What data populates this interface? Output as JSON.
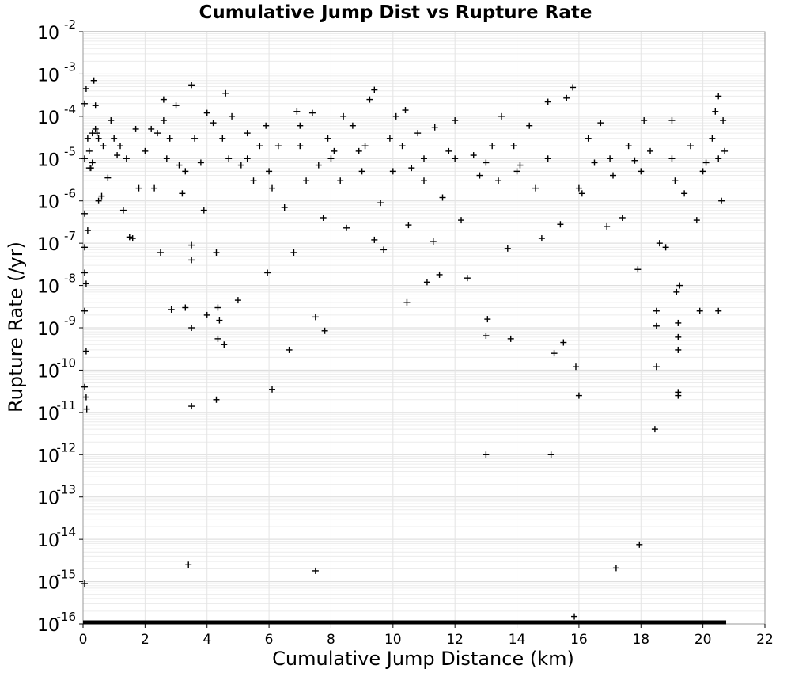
{
  "chart_data": {
    "type": "scatter",
    "title": "Cumulative Jump Dist vs Rupture Rate",
    "xlabel": "Cumulative Jump Distance (km)",
    "ylabel": "Rupture Rate (/yr)",
    "xlim": [
      0,
      22
    ],
    "ylim": [
      1e-16,
      0.01
    ],
    "yscale": "log",
    "grid": true,
    "xticks": [
      "0",
      "2",
      "4",
      "6",
      "8",
      "10",
      "12",
      "14",
      "16",
      "18",
      "20",
      "22"
    ],
    "yticks": [
      {
        "base": "10",
        "exp": "-2"
      },
      {
        "base": "10",
        "exp": "-3"
      },
      {
        "base": "10",
        "exp": "-4"
      },
      {
        "base": "10",
        "exp": "-5"
      },
      {
        "base": "10",
        "exp": "-6"
      },
      {
        "base": "10",
        "exp": "-7"
      },
      {
        "base": "10",
        "exp": "-8"
      },
      {
        "base": "10",
        "exp": "-9"
      },
      {
        "base": "10",
        "exp": "-10"
      },
      {
        "base": "10",
        "exp": "-11"
      },
      {
        "base": "10",
        "exp": "-12"
      },
      {
        "base": "10",
        "exp": "-13"
      },
      {
        "base": "10",
        "exp": "-14"
      },
      {
        "base": "10",
        "exp": "-15"
      },
      {
        "base": "10",
        "exp": "-16"
      }
    ],
    "marker": "+",
    "marker_color": "#000000",
    "points": [
      [
        0.05,
        0.0002
      ],
      [
        0.1,
        0.00045
      ],
      [
        0.15,
        3e-05
      ],
      [
        0.2,
        1.5e-05
      ],
      [
        0.25,
        6e-06
      ],
      [
        0.3,
        4e-05
      ],
      [
        0.35,
        0.0007
      ],
      [
        0.4,
        0.00018
      ],
      [
        0.45,
        4e-05
      ],
      [
        0.5,
        1e-06
      ],
      [
        0.6,
        1.3e-06
      ],
      [
        0.65,
        2e-05
      ],
      [
        0.8,
        3.5e-06
      ],
      [
        0.9,
        8e-05
      ],
      [
        1.1,
        1.2e-05
      ],
      [
        1.3,
        6e-07
      ],
      [
        1.5,
        1.4e-07
      ],
      [
        1.6,
        1.3e-07
      ],
      [
        1.7,
        5e-05
      ],
      [
        1.8,
        2e-06
      ],
      [
        2.0,
        1.5e-05
      ],
      [
        2.2,
        5e-05
      ],
      [
        2.4,
        4e-05
      ],
      [
        2.5,
        6e-08
      ],
      [
        2.6,
        0.00025
      ],
      [
        2.6,
        8e-05
      ],
      [
        2.7,
        1e-05
      ],
      [
        2.8,
        3e-05
      ],
      [
        2.85,
        2.7e-09
      ],
      [
        3.0,
        0.00018
      ],
      [
        3.1,
        7e-06
      ],
      [
        3.2,
        1.5e-06
      ],
      [
        3.3,
        3e-09
      ],
      [
        3.4,
        2.5e-15
      ],
      [
        3.5,
        0.00055
      ],
      [
        3.5,
        1e-09
      ],
      [
        3.5,
        1.4e-11
      ],
      [
        3.5,
        4e-08
      ],
      [
        3.5,
        9e-08
      ],
      [
        3.6,
        3e-05
      ],
      [
        3.8,
        8e-06
      ],
      [
        3.9,
        6e-07
      ],
      [
        4.0,
        0.00012
      ],
      [
        4.0,
        2e-09
      ],
      [
        4.2,
        7e-05
      ],
      [
        4.3,
        6e-08
      ],
      [
        4.3,
        2e-11
      ],
      [
        4.35,
        5.5e-10
      ],
      [
        4.35,
        3e-09
      ],
      [
        4.4,
        1.5e-09
      ],
      [
        4.5,
        3e-05
      ],
      [
        4.55,
        4e-10
      ],
      [
        4.6,
        0.00035
      ],
      [
        4.7,
        1e-05
      ],
      [
        4.8,
        0.0001
      ],
      [
        5.0,
        4.5e-09
      ],
      [
        5.1,
        7e-06
      ],
      [
        5.3,
        4e-05
      ],
      [
        5.5,
        3e-06
      ],
      [
        5.7,
        2e-05
      ],
      [
        5.9,
        6e-05
      ],
      [
        5.95,
        2e-08
      ],
      [
        6.1,
        3.5e-11
      ],
      [
        6.1,
        2e-06
      ],
      [
        6.3,
        2e-05
      ],
      [
        6.5,
        7e-07
      ],
      [
        6.65,
        3e-10
      ],
      [
        6.8,
        6e-08
      ],
      [
        6.9,
        0.00013
      ],
      [
        7.0,
        6e-05
      ],
      [
        7.2,
        3e-06
      ],
      [
        7.4,
        0.00012
      ],
      [
        7.5,
        1.8e-09
      ],
      [
        7.5,
        1.8e-15
      ],
      [
        7.6,
        7e-06
      ],
      [
        7.75,
        4e-07
      ],
      [
        7.8,
        8.5e-10
      ],
      [
        7.9,
        3e-05
      ],
      [
        8.1,
        1.5e-05
      ],
      [
        8.3,
        3e-06
      ],
      [
        8.4,
        0.0001
      ],
      [
        8.5,
        2.3e-07
      ],
      [
        8.7,
        6e-05
      ],
      [
        8.9,
        1.5e-05
      ],
      [
        9.1,
        2e-05
      ],
      [
        9.25,
        0.00025
      ],
      [
        9.4,
        0.00042
      ],
      [
        9.4,
        1.2e-07
      ],
      [
        9.6,
        9e-07
      ],
      [
        9.7,
        7e-08
      ],
      [
        9.9,
        3e-05
      ],
      [
        10.1,
        0.0001
      ],
      [
        10.3,
        2e-05
      ],
      [
        10.4,
        0.00014
      ],
      [
        10.45,
        4e-09
      ],
      [
        10.5,
        2.7e-07
      ],
      [
        10.6,
        6e-06
      ],
      [
        10.8,
        4e-05
      ],
      [
        11.0,
        1e-05
      ],
      [
        11.1,
        1.2e-08
      ],
      [
        11.3,
        1.1e-07
      ],
      [
        11.35,
        5.5e-05
      ],
      [
        11.5,
        1.8e-08
      ],
      [
        11.6,
        1.2e-06
      ],
      [
        11.8,
        1.5e-05
      ],
      [
        12.0,
        8e-05
      ],
      [
        12.2,
        3.5e-07
      ],
      [
        12.4,
        1.5e-08
      ],
      [
        12.6,
        1.2e-05
      ],
      [
        12.8,
        4e-06
      ],
      [
        13.0,
        1e-12
      ],
      [
        13.0,
        6.5e-10
      ],
      [
        13.05,
        1.6e-09
      ],
      [
        13.2,
        2e-05
      ],
      [
        13.4,
        3e-06
      ],
      [
        13.5,
        0.0001
      ],
      [
        13.7,
        7.5e-08
      ],
      [
        13.8,
        5.5e-10
      ],
      [
        13.9,
        2e-05
      ],
      [
        14.1,
        7e-06
      ],
      [
        14.4,
        6e-05
      ],
      [
        14.6,
        2e-06
      ],
      [
        14.8,
        1.3e-07
      ],
      [
        15.0,
        0.00022
      ],
      [
        15.1,
        1e-12
      ],
      [
        15.2,
        2.5e-10
      ],
      [
        15.4,
        2.8e-07
      ],
      [
        15.5,
        4.5e-10
      ],
      [
        15.6,
        0.00027
      ],
      [
        15.8,
        0.00048
      ],
      [
        15.85,
        1.5e-16
      ],
      [
        15.9,
        1.2e-10
      ],
      [
        16.0,
        2.5e-11
      ],
      [
        16.1,
        1.5e-06
      ],
      [
        16.3,
        3e-05
      ],
      [
        16.5,
        8e-06
      ],
      [
        16.7,
        7e-05
      ],
      [
        16.9,
        2.5e-07
      ],
      [
        17.1,
        4e-06
      ],
      [
        17.2,
        2.1e-15
      ],
      [
        17.4,
        4e-07
      ],
      [
        17.6,
        2e-05
      ],
      [
        17.8,
        9e-06
      ],
      [
        17.9,
        2.4e-08
      ],
      [
        17.95,
        7.5e-15
      ],
      [
        18.1,
        8e-05
      ],
      [
        18.3,
        1.5e-05
      ],
      [
        18.45,
        4e-12
      ],
      [
        18.5,
        1.2e-10
      ],
      [
        18.5,
        2.5e-09
      ],
      [
        18.5,
        1.1e-09
      ],
      [
        18.6,
        1e-07
      ],
      [
        18.8,
        8e-08
      ],
      [
        19.0,
        8e-05
      ],
      [
        19.1,
        3e-06
      ],
      [
        19.15,
        7e-09
      ],
      [
        19.2,
        3e-11
      ],
      [
        19.2,
        2.5e-11
      ],
      [
        19.2,
        3e-10
      ],
      [
        19.2,
        6e-10
      ],
      [
        19.2,
        1.3e-09
      ],
      [
        19.25,
        1e-08
      ],
      [
        19.4,
        1.5e-06
      ],
      [
        19.6,
        2e-05
      ],
      [
        19.8,
        3.5e-07
      ],
      [
        19.9,
        2.5e-09
      ],
      [
        20.1,
        8e-06
      ],
      [
        20.3,
        3e-05
      ],
      [
        20.4,
        0.00013
      ],
      [
        20.5,
        0.0003
      ],
      [
        20.5,
        2.5e-09
      ],
      [
        20.6,
        1e-06
      ],
      [
        20.65,
        8e-05
      ],
      [
        20.7,
        1.5e-05
      ],
      [
        0.05,
        1e-05
      ],
      [
        0.05,
        5e-07
      ],
      [
        0.05,
        8e-08
      ],
      [
        0.05,
        2e-08
      ],
      [
        0.05,
        2.5e-09
      ],
      [
        0.05,
        4e-11
      ],
      [
        0.05,
        9e-16
      ],
      [
        0.1,
        1.1e-08
      ],
      [
        0.1,
        2.8e-10
      ],
      [
        0.1,
        2.3e-11
      ],
      [
        0.12,
        1.2e-11
      ],
      [
        0.15,
        2e-07
      ],
      [
        0.2,
        6e-06
      ],
      [
        0.3,
        8e-06
      ],
      [
        0.4,
        5e-05
      ],
      [
        0.5,
        3e-05
      ],
      [
        1.0,
        3e-05
      ],
      [
        1.2,
        2e-05
      ],
      [
        1.4,
        1e-05
      ],
      [
        2.3,
        2e-06
      ],
      [
        3.3,
        5e-06
      ],
      [
        5.3,
        1e-05
      ],
      [
        6.0,
        5e-06
      ],
      [
        7.0,
        2e-05
      ],
      [
        8.0,
        1e-05
      ],
      [
        9.0,
        5e-06
      ],
      [
        10.0,
        5e-06
      ],
      [
        11.0,
        3e-06
      ],
      [
        12.0,
        1e-05
      ],
      [
        13.0,
        8e-06
      ],
      [
        14.0,
        5e-06
      ],
      [
        15.0,
        1e-05
      ],
      [
        16.0,
        2e-06
      ],
      [
        17.0,
        1e-05
      ],
      [
        18.0,
        5e-06
      ],
      [
        19.0,
        1e-05
      ],
      [
        20.0,
        5e-06
      ],
      [
        20.5,
        1e-05
      ]
    ],
    "baseline_segment": {
      "x": [
        0,
        20.75
      ],
      "y": 1e-16
    }
  }
}
